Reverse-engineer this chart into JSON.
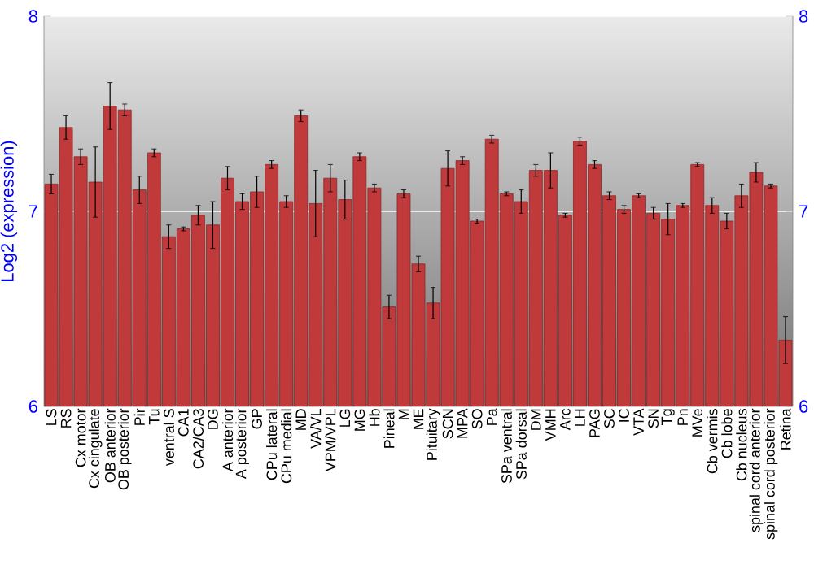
{
  "chart_data": {
    "type": "bar",
    "ylabel": "Log2 (expression)",
    "categories": [
      "LS",
      "RS",
      "Cx motor",
      "Cx cingulate",
      "OB anterior",
      "OB posterior",
      "Pir",
      "Tu",
      "ventral S",
      "CA1",
      "CA2/CA3",
      "DG",
      "A anterior",
      "A posterior",
      "GP",
      "CPu lateral",
      "CPu medial",
      "MD",
      "VA/VL",
      "VPM/VPL",
      "LG",
      "MG",
      "Hb",
      "Pineal",
      "M",
      "ME",
      "Pituitary",
      "SCN",
      "MPA",
      "SO",
      "Pa",
      "SPa ventral",
      "SPa dorsal",
      "DM",
      "VMH",
      "Arc",
      "LH",
      "PAG",
      "SC",
      "IC",
      "VTA",
      "SN",
      "Tg",
      "Pn",
      "MVe",
      "Cb vermis",
      "Cb lobe",
      "Cb nucleus",
      "spinal cord anterior",
      "spinal cord posterior",
      "Retina"
    ],
    "values": [
      7.14,
      7.43,
      7.28,
      7.15,
      7.54,
      7.52,
      7.11,
      7.3,
      6.87,
      6.91,
      6.98,
      6.93,
      7.17,
      7.05,
      7.1,
      7.24,
      7.05,
      7.49,
      7.04,
      7.17,
      7.06,
      7.28,
      7.12,
      6.51,
      7.09,
      6.73,
      6.53,
      7.22,
      7.26,
      6.95,
      7.37,
      7.09,
      7.05,
      7.21,
      7.21,
      6.98,
      7.36,
      7.24,
      7.08,
      7.01,
      7.08,
      6.99,
      6.96,
      7.03,
      7.24,
      7.03,
      6.95,
      7.08,
      7.2,
      7.13,
      6.34
    ],
    "errors": [
      0.05,
      0.06,
      0.04,
      0.18,
      0.12,
      0.03,
      0.07,
      0.02,
      0.06,
      0.01,
      0.05,
      0.12,
      0.06,
      0.04,
      0.08,
      0.02,
      0.03,
      0.03,
      0.17,
      0.07,
      0.1,
      0.02,
      0.02,
      0.06,
      0.02,
      0.04,
      0.08,
      0.09,
      0.02,
      0.01,
      0.02,
      0.01,
      0.06,
      0.03,
      0.09,
      0.01,
      0.02,
      0.02,
      0.02,
      0.02,
      0.01,
      0.03,
      0.08,
      0.01,
      0.01,
      0.04,
      0.04,
      0.06,
      0.05,
      0.01,
      0.12
    ],
    "color": "#c0393b",
    "ylim": [
      6,
      8
    ],
    "yticks": [
      6,
      7,
      8
    ],
    "y2lim": [
      6,
      8
    ],
    "y2ticks": [
      6,
      7,
      8
    ],
    "grid": "y"
  }
}
